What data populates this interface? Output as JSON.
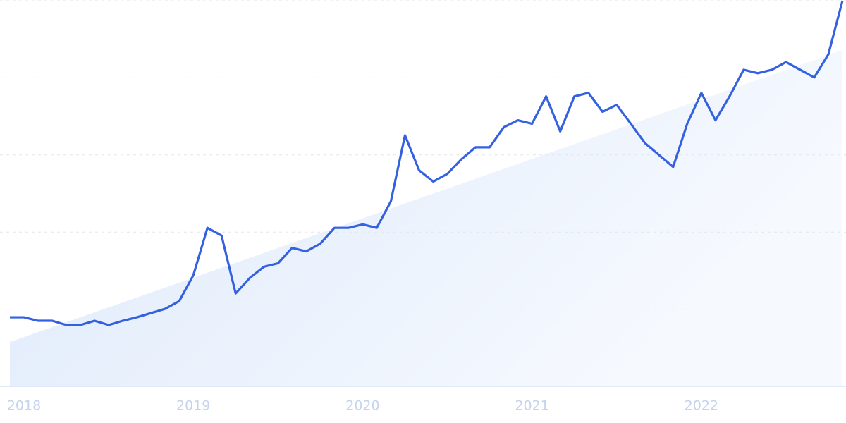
{
  "chart_data": {
    "type": "line",
    "categories": [
      null,
      "2018",
      null,
      null,
      null,
      null,
      null,
      null,
      null,
      null,
      null,
      null,
      null,
      "2019",
      null,
      null,
      null,
      null,
      null,
      null,
      null,
      null,
      null,
      null,
      null,
      "2020",
      null,
      null,
      null,
      null,
      null,
      null,
      null,
      null,
      null,
      null,
      null,
      "2021",
      null,
      null,
      null,
      null,
      null,
      null,
      null,
      null,
      null,
      null,
      null,
      "2022",
      null,
      null,
      null,
      null,
      null,
      null,
      null,
      null,
      null,
      null
    ],
    "values": [
      17.9,
      17.9,
      17.0,
      17.0,
      15.9,
      15.9,
      17.0,
      15.9,
      17.0,
      17.9,
      19.0,
      20.1,
      22.1,
      28.8,
      41.1,
      39.1,
      24.1,
      28.1,
      31.0,
      31.9,
      35.9,
      35.0,
      37.0,
      41.1,
      41.1,
      42.0,
      41.1,
      48.0,
      65.1,
      56.0,
      53.1,
      55.1,
      58.9,
      62.0,
      62.0,
      67.2,
      69.0,
      68.1,
      75.2,
      66.1,
      75.2,
      76.1,
      71.2,
      73.0,
      68.1,
      63.1,
      60.0,
      56.9,
      68.1,
      76.1,
      69.0,
      75.2,
      82.1,
      81.2,
      82.1,
      84.1,
      82.1,
      80.1,
      86.1,
      100
    ],
    "color": "#3461e0",
    "trend": [
      11.5,
      87.2
    ],
    "trend_color": "#dde9fb",
    "ylim": [
      0,
      100
    ],
    "yticks": [
      0,
      20,
      40,
      60,
      80,
      100
    ],
    "grid": true
  }
}
